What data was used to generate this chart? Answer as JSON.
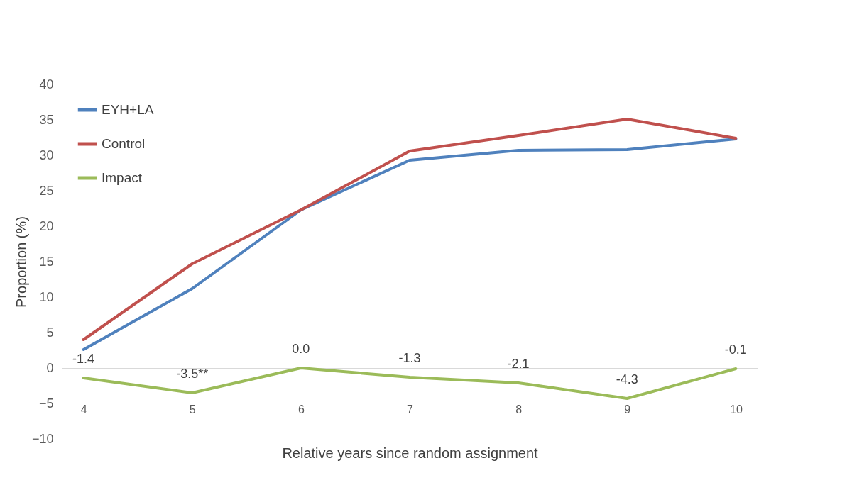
{
  "chart_data": {
    "type": "line",
    "xlabel": "Relative years since random assignment",
    "ylabel": "Proportion (%)",
    "categories": [
      "4",
      "5",
      "6",
      "7",
      "8",
      "9",
      "10"
    ],
    "series": [
      {
        "name": "EYH+LA",
        "color": "#4f81bd",
        "values": [
          2.6,
          11.2,
          22.3,
          29.3,
          30.7,
          30.8,
          32.3
        ]
      },
      {
        "name": "Control",
        "color": "#c0504d",
        "values": [
          4.0,
          14.7,
          22.3,
          30.6,
          32.8,
          35.1,
          32.4
        ]
      },
      {
        "name": "Impact",
        "color": "#9bbb59",
        "values": [
          -1.4,
          -3.5,
          0.0,
          -1.3,
          -2.1,
          -4.3,
          -0.1
        ],
        "value_labels": [
          "-1.4",
          "-3.5**",
          "0.0",
          "-1.3",
          "-2.1",
          "-4.3",
          "-0.1"
        ]
      }
    ],
    "ylim": [
      -10,
      40
    ],
    "yticks": [
      -10,
      -5,
      0,
      5,
      10,
      15,
      20,
      25,
      30,
      35,
      40
    ],
    "legend": "top left",
    "marker": "none",
    "line_style": "solid"
  }
}
